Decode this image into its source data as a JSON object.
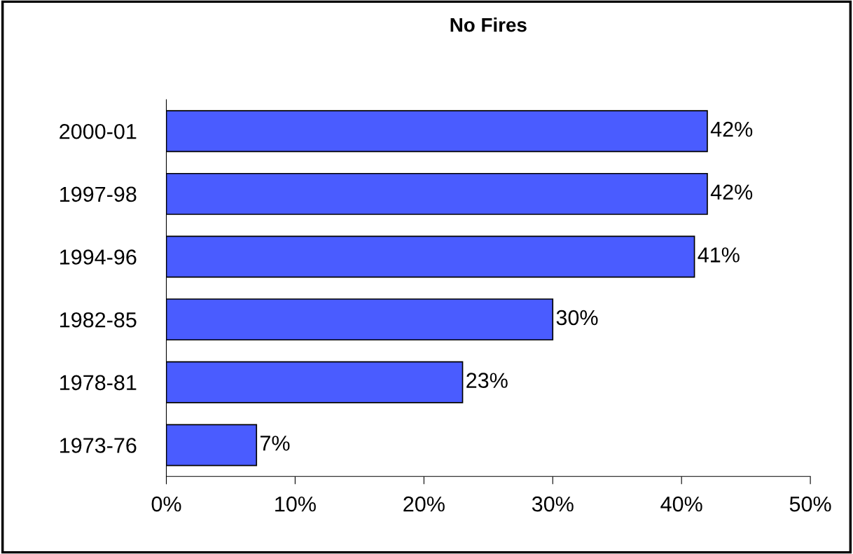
{
  "chart_data": {
    "type": "bar",
    "title": "No Fires",
    "orientation": "horizontal",
    "categories": [
      "2000-01",
      "1997-98",
      "1994-96",
      "1982-85",
      "1978-81",
      "1973-76"
    ],
    "values": [
      42,
      42,
      41,
      30,
      23,
      7
    ],
    "value_labels": [
      "42%",
      "42%",
      "41%",
      "30%",
      "23%",
      "7%"
    ],
    "color": "#4a5cff",
    "xlim": [
      0,
      50
    ],
    "xticks": [
      {
        "value": 0,
        "label": "0%"
      },
      {
        "value": 10,
        "label": "10%"
      },
      {
        "value": 20,
        "label": "20%"
      },
      {
        "value": 30,
        "label": "30%"
      },
      {
        "value": 40,
        "label": "40%"
      },
      {
        "value": 50,
        "label": "50%"
      }
    ],
    "grid": false
  }
}
